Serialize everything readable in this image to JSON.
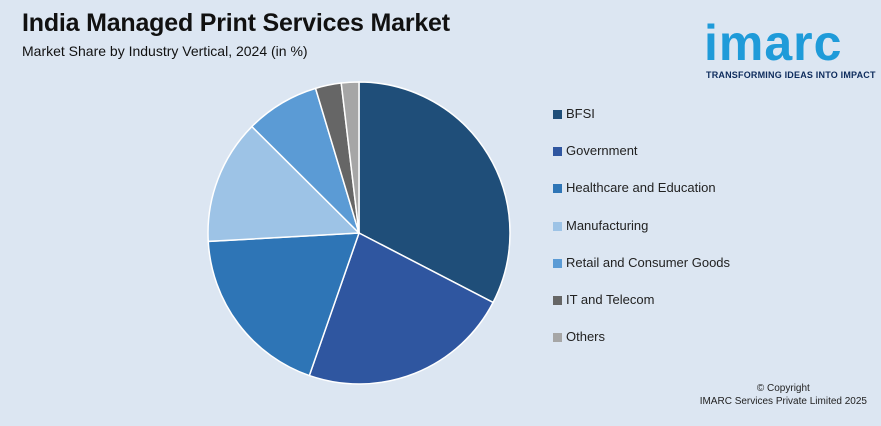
{
  "header": {
    "title": "India Managed Print Services Market",
    "subtitle": "Market Share by Industry Vertical, 2024 (in %)"
  },
  "logo": {
    "brand": "imarc",
    "tagline": "TRANSFORMING IDEAS INTO IMPACT"
  },
  "footer": {
    "copyright": "© Copyright",
    "company": "IMARC Services Private Limited 2025"
  },
  "chart_data": {
    "type": "pie",
    "categories": [
      "BFSI",
      "Government",
      "Healthcare and Education",
      "Manufacturing",
      "Retail and Consumer Goods",
      "IT and Telecom",
      "Others"
    ],
    "values": [
      33,
      23,
      19,
      13.5,
      8,
      2.8,
      1.9
    ],
    "colors": [
      "#1f4e79",
      "#2f56a0",
      "#2e75b6",
      "#9dc3e6",
      "#5b9bd5",
      "#666666",
      "#a6a6a6"
    ],
    "legend_position": "right"
  }
}
